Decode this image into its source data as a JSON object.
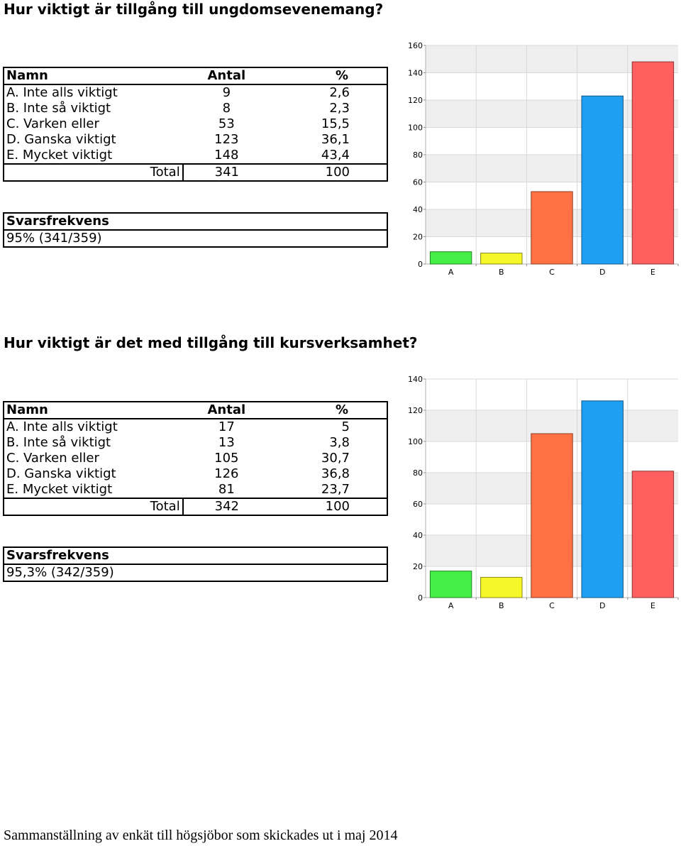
{
  "questions": [
    {
      "title": "Hur viktigt är tillgång till ungdomsevenemang?",
      "headers": {
        "name": "Namn",
        "count": "Antal",
        "pct": "%"
      },
      "rows": [
        {
          "name": "A. Inte alls viktigt",
          "count": "9",
          "pct": "2,6"
        },
        {
          "name": "B. Inte så viktigt",
          "count": "8",
          "pct": "2,3"
        },
        {
          "name": "C. Varken eller",
          "count": "53",
          "pct": "15,5"
        },
        {
          "name": "D. Ganska viktigt",
          "count": "123",
          "pct": "36,1"
        },
        {
          "name": "E. Mycket viktigt",
          "count": "148",
          "pct": "43,4"
        }
      ],
      "total": {
        "label": "Total",
        "count": "341",
        "pct": "100"
      },
      "response": {
        "label": "Svarsfrekvens",
        "value": "95% (341/359)"
      }
    },
    {
      "title": "Hur viktigt är det med tillgång till kursverksamhet?",
      "headers": {
        "name": "Namn",
        "count": "Antal",
        "pct": "%"
      },
      "rows": [
        {
          "name": "A. Inte alls viktigt",
          "count": "17",
          "pct": "5"
        },
        {
          "name": "B. Inte så viktigt",
          "count": "13",
          "pct": "3,8"
        },
        {
          "name": "C. Varken eller",
          "count": "105",
          "pct": "30,7"
        },
        {
          "name": "D. Ganska viktigt",
          "count": "126",
          "pct": "36,8"
        },
        {
          "name": "E. Mycket viktigt",
          "count": "81",
          "pct": "23,7"
        }
      ],
      "total": {
        "label": "Total",
        "count": "342",
        "pct": "100"
      },
      "response": {
        "label": "Svarsfrekvens",
        "value": "95,3% (342/359)"
      }
    }
  ],
  "chart_data": [
    {
      "type": "bar",
      "categories": [
        "A",
        "B",
        "C",
        "D",
        "E"
      ],
      "values": [
        9,
        8,
        53,
        123,
        148
      ],
      "ylim": [
        0,
        160
      ],
      "yticks": [
        0,
        20,
        40,
        60,
        80,
        100,
        120,
        140,
        160
      ],
      "colors": [
        "#44ee44",
        "#f6f628",
        "#ff7043",
        "#1e9ff2",
        "#ff5f5f"
      ],
      "grid": true,
      "legend": "none"
    },
    {
      "type": "bar",
      "categories": [
        "A",
        "B",
        "C",
        "D",
        "E"
      ],
      "values": [
        17,
        13,
        105,
        126,
        81
      ],
      "ylim": [
        0,
        140
      ],
      "yticks": [
        0,
        20,
        40,
        60,
        80,
        100,
        120,
        140
      ],
      "colors": [
        "#44ee44",
        "#f6f628",
        "#ff7043",
        "#1e9ff2",
        "#ff5f5f"
      ],
      "grid": true,
      "legend": "none"
    }
  ],
  "footer": "Sammanställning av enkät till högsjöbor som skickades ut i maj 2014"
}
